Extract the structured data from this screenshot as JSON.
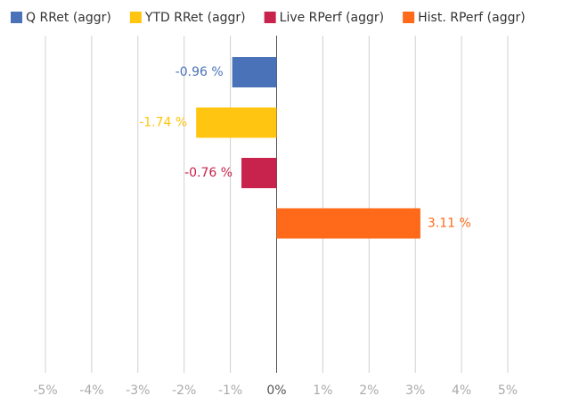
{
  "chart_data": {
    "type": "bar",
    "orientation": "horizontal",
    "legend": "top",
    "grid": true,
    "series": [
      {
        "name": "Q RRet (aggr)",
        "color": "#4a72b8",
        "values": [
          -0.96
        ],
        "value_labels": [
          "-0.96 %"
        ]
      },
      {
        "name": "YTD RRet (aggr)",
        "color": "#ffc510",
        "values": [
          -1.74
        ],
        "value_labels": [
          "-1.74 %"
        ]
      },
      {
        "name": "Live RPerf (aggr)",
        "color": "#c8234c",
        "values": [
          -0.76
        ],
        "value_labels": [
          "-0.76 %"
        ]
      },
      {
        "name": "Hist. RPerf (aggr)",
        "color": "#ff6a1a",
        "values": [
          3.11
        ],
        "value_labels": [
          "3.11 %"
        ]
      }
    ],
    "xlim": [
      -5,
      5
    ],
    "xticks": [
      {
        "value": -5,
        "label": "-5%"
      },
      {
        "value": -4,
        "label": "-4%"
      },
      {
        "value": -3,
        "label": "-3%"
      },
      {
        "value": -2,
        "label": "-2%"
      },
      {
        "value": -1,
        "label": "-1%"
      },
      {
        "value": 0,
        "label": "0%"
      },
      {
        "value": 1,
        "label": "1%"
      },
      {
        "value": 2,
        "label": "2%"
      },
      {
        "value": 3,
        "label": "3%"
      },
      {
        "value": 4,
        "label": "4%"
      },
      {
        "value": 5,
        "label": "5%"
      }
    ]
  }
}
